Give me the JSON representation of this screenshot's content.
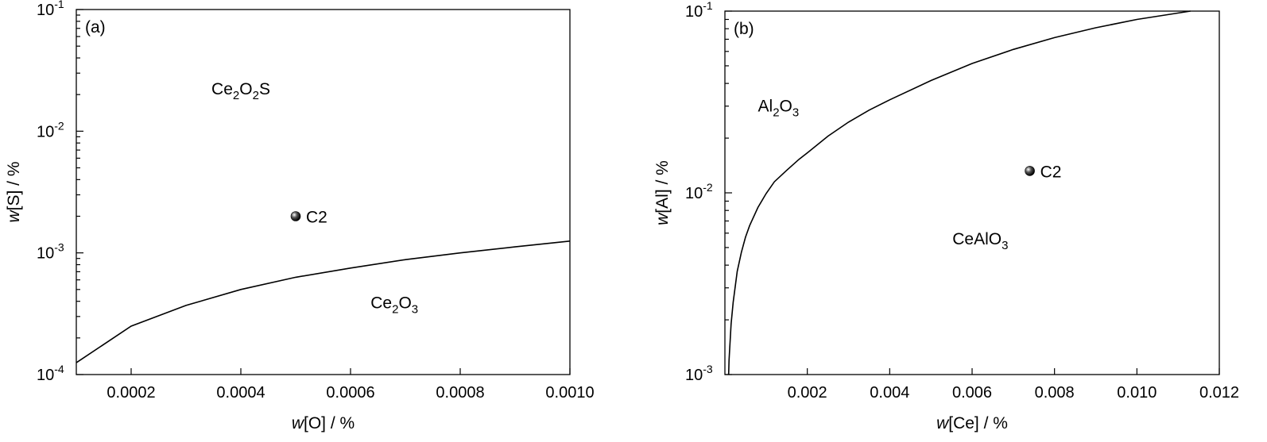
{
  "chart_data": [
    {
      "type": "line",
      "panel_label": "(a)",
      "x_label_italic": "w",
      "x_label_rest": "[O] / %",
      "y_label_italic": "w",
      "y_label_rest": "[S] / %",
      "y_scale": "log",
      "xlim": [
        0.0001,
        0.001
      ],
      "ylim": [
        0.0001,
        0.1
      ],
      "x_ticks": [
        0.0002,
        0.0004,
        0.0006,
        0.0008,
        0.001
      ],
      "x_tick_labels": [
        "0.0002",
        "0.0004",
        "0.0006",
        "0.0008",
        "0.0010"
      ],
      "y_ticks": [
        0.0001,
        0.001,
        0.01,
        0.1
      ],
      "y_tick_base": [
        "10",
        "10",
        "10",
        "10"
      ],
      "y_tick_exp": [
        "-4",
        "-3",
        "-2",
        "-1"
      ],
      "grid": false,
      "series": [
        {
          "x": [
            0.0001,
            0.0002,
            0.0003,
            0.0004,
            0.0005,
            0.0006,
            0.0007,
            0.0008,
            0.0009,
            0.001
          ],
          "y": [
            0.000125,
            0.00025,
            0.00037,
            0.0005,
            0.00063,
            0.00075,
            0.00088,
            0.001,
            0.00112,
            0.00125
          ]
        }
      ],
      "point": {
        "label": "C2",
        "x": 0.0005,
        "y": 0.002
      },
      "regions": [
        {
          "parts": [
            [
              "Ce",
              "n"
            ],
            [
              "2",
              "s"
            ],
            [
              "O",
              "n"
            ],
            [
              "2",
              "s"
            ],
            [
              "S",
              "n"
            ]
          ],
          "x": 0.0004,
          "y": 0.02
        },
        {
          "parts": [
            [
              "Ce",
              "n"
            ],
            [
              "2",
              "s"
            ],
            [
              "O",
              "n"
            ],
            [
              "3",
              "s"
            ]
          ],
          "x": 0.00068,
          "y": 0.00035
        }
      ]
    },
    {
      "type": "line",
      "panel_label": "(b)",
      "x_label_italic": "w",
      "x_label_rest": "[Ce] / %",
      "y_label_italic": "w",
      "y_label_rest": "[Al] / %",
      "y_scale": "log",
      "xlim": [
        0.0,
        0.012
      ],
      "ylim": [
        0.001,
        0.1
      ],
      "x_ticks": [
        0.002,
        0.004,
        0.006,
        0.008,
        0.01,
        0.012
      ],
      "x_tick_labels": [
        "0.002",
        "0.004",
        "0.006",
        "0.008",
        "0.010",
        "0.012"
      ],
      "y_ticks": [
        0.001,
        0.01,
        0.1
      ],
      "y_tick_base": [
        "10",
        "10",
        "10"
      ],
      "y_tick_exp": [
        "-3",
        "-2",
        "-1"
      ],
      "grid": false,
      "series": [
        {
          "x": [
            9e-05,
            0.0001,
            0.00015,
            0.0002,
            0.0003,
            0.0004,
            0.0005,
            0.0006,
            0.0008,
            0.001,
            0.0012,
            0.0015,
            0.0018,
            0.002,
            0.0025,
            0.003,
            0.0035,
            0.004,
            0.005,
            0.006,
            0.007,
            0.008,
            0.009,
            0.01,
            0.0113
          ],
          "y": [
            0.001,
            0.0012,
            0.0019,
            0.0025,
            0.0037,
            0.0047,
            0.0057,
            0.0066,
            0.0083,
            0.0099,
            0.0115,
            0.0133,
            0.0153,
            0.0166,
            0.0205,
            0.0245,
            0.0285,
            0.0325,
            0.0415,
            0.0515,
            0.0615,
            0.0715,
            0.081,
            0.09,
            0.1
          ]
        }
      ],
      "point": {
        "label": "C2",
        "x": 0.0074,
        "y": 0.0132
      },
      "regions": [
        {
          "parts": [
            [
              "Al",
              "n"
            ],
            [
              "2",
              "s"
            ],
            [
              "O",
              "n"
            ],
            [
              "3",
              "s"
            ]
          ],
          "x": 0.0013,
          "y": 0.028
        },
        {
          "parts": [
            [
              "CeAlO",
              "n"
            ],
            [
              "3",
              "s"
            ]
          ],
          "x": 0.0062,
          "y": 0.0052
        }
      ]
    }
  ]
}
